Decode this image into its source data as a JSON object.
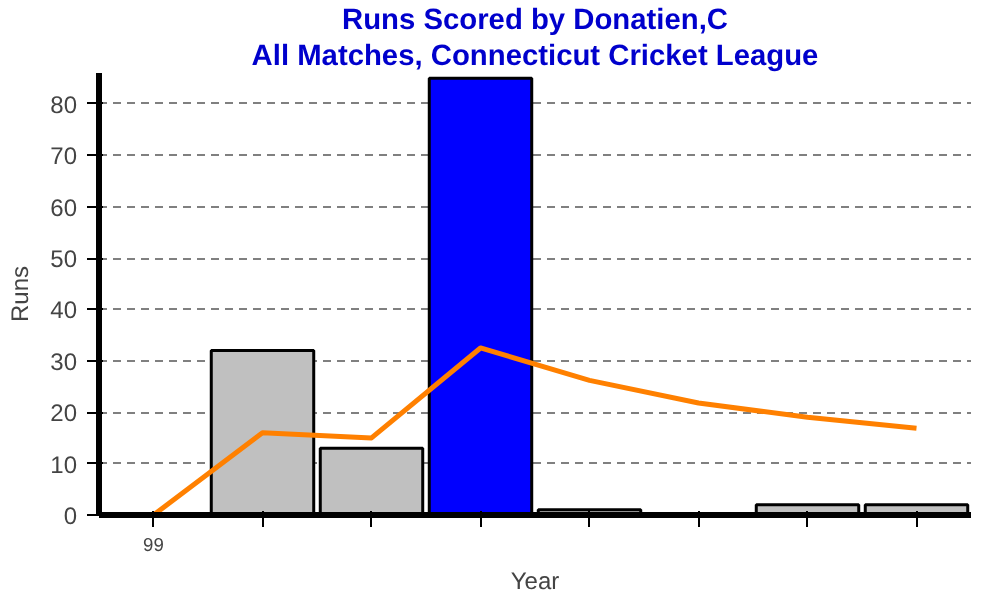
{
  "chart_data": {
    "type": "bar",
    "title": "Runs Scored by Donatien,C",
    "subtitle": "All Matches, Connecticut Cricket League",
    "xlabel": "Year",
    "ylabel": "Runs",
    "categories": [
      "99",
      null,
      null,
      null,
      null,
      null,
      null,
      null
    ],
    "series": [
      {
        "values": [
          0,
          32,
          13,
          85,
          1,
          0,
          2,
          2
        ],
        "colors": [
          "#000000",
          "#c0c0c0",
          "#c0c0c0",
          "#0000ff",
          "#c0c0c0",
          "#000000",
          "#c0c0c0",
          "#c0c0c0"
        ]
      },
      {
        "type": "line",
        "color": "#ff8000",
        "values": [
          0,
          16,
          15,
          32.5,
          26.2,
          21.8,
          19,
          16.9
        ]
      }
    ],
    "ylim": [
      0,
      86
    ],
    "yticks": [
      0,
      10,
      20,
      30,
      40,
      50,
      60,
      70,
      80
    ],
    "grid": "y"
  }
}
